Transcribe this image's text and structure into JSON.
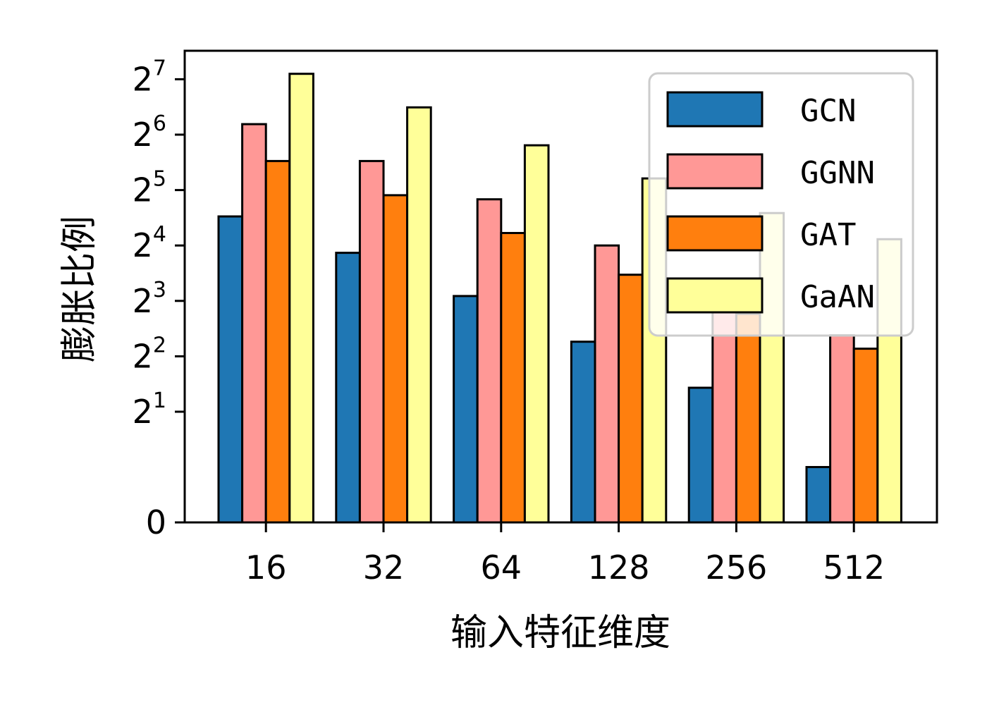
{
  "chart_data": {
    "type": "bar",
    "xlabel": "输入特征维度",
    "ylabel": "膨胀比例",
    "yscale": "symlog base 2 (linear between 0 and 2^1)",
    "categories": [
      "16",
      "32",
      "64",
      "128",
      "256",
      "512"
    ],
    "series": [
      {
        "name": "GCN",
        "color": "#1f77b4",
        "values": [
          23.0,
          14.6,
          8.5,
          4.8,
          2.7,
          1.0
        ]
      },
      {
        "name": "GGNN",
        "color": "#ff9896",
        "values": [
          73.0,
          46.0,
          28.5,
          16.0,
          9.2,
          5.2
        ]
      },
      {
        "name": "GAT",
        "color": "#ff7f0e",
        "values": [
          46.0,
          30.0,
          18.7,
          11.1,
          6.8,
          4.4
        ]
      },
      {
        "name": "GaAN",
        "color": "#ffff99",
        "values": [
          137.0,
          90.0,
          56.0,
          37.0,
          24.0,
          17.3
        ]
      }
    ],
    "yticks": [
      {
        "value": 0,
        "base": "0",
        "exp": ""
      },
      {
        "value": 2,
        "base": "2",
        "exp": "1"
      },
      {
        "value": 4,
        "base": "2",
        "exp": "2"
      },
      {
        "value": 8,
        "base": "2",
        "exp": "3"
      },
      {
        "value": 16,
        "base": "2",
        "exp": "4"
      },
      {
        "value": 32,
        "base": "2",
        "exp": "5"
      },
      {
        "value": 64,
        "base": "2",
        "exp": "6"
      },
      {
        "value": 128,
        "base": "2",
        "exp": "7"
      }
    ],
    "ylim": [
      0,
      180
    ],
    "legend_position": "upper-right",
    "grid": false
  }
}
